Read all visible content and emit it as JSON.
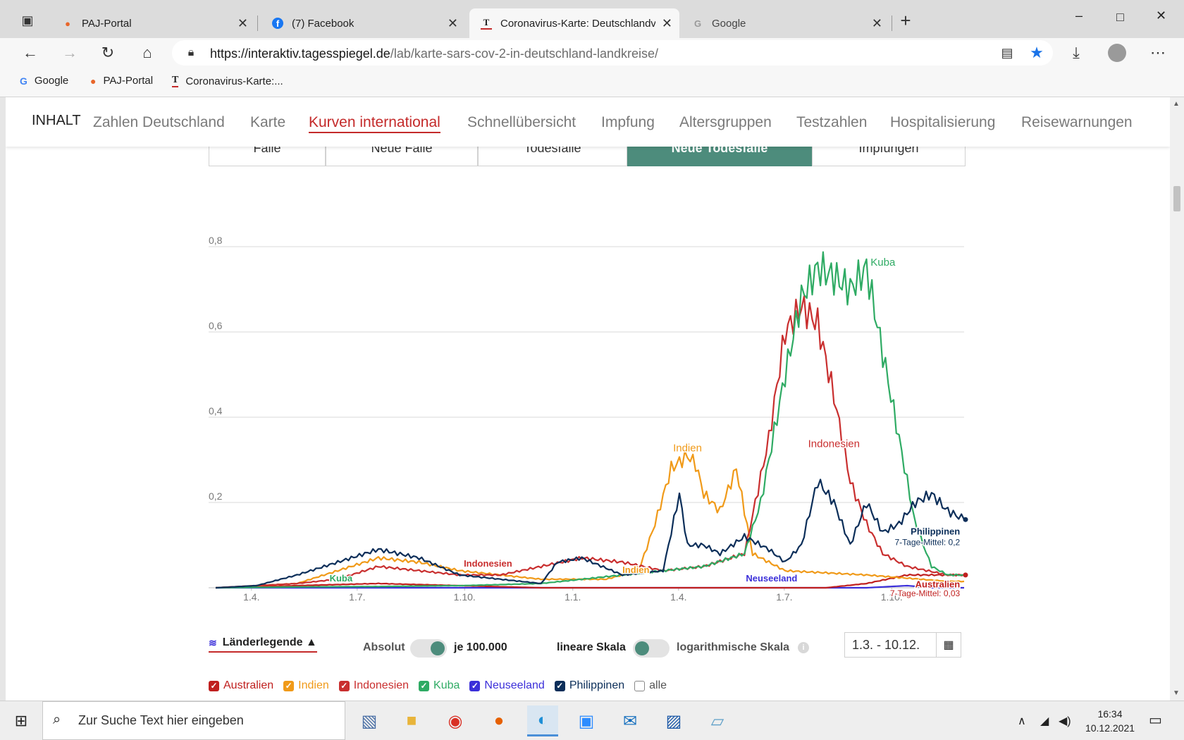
{
  "browser": {
    "tabs": [
      {
        "label": "PAJ-Portal",
        "icon": "map-pin-icon"
      },
      {
        "label": "(7) Facebook",
        "icon": "facebook-icon"
      },
      {
        "label": "Coronavirus-Karte: Deutschlandv",
        "icon": "tagesspiegel-icon"
      },
      {
        "label": "Google",
        "icon": "google-icon"
      }
    ],
    "url_host": "https://interaktiv.tagesspiegel.de",
    "url_path": "/lab/karte-sars-cov-2-in-deutschland-landkreise/",
    "bookmarks": [
      {
        "label": "Google",
        "icon": "google-icon"
      },
      {
        "label": "PAJ-Portal",
        "icon": "map-pin-icon"
      },
      {
        "label": "Coronavirus-Karte:...",
        "icon": "tagesspiegel-icon"
      }
    ]
  },
  "nav": {
    "inhalt": "INHALT",
    "items": [
      "Zahlen Deutschland",
      "Karte",
      "Kurven international",
      "Schnellübersicht",
      "Impfung",
      "Altersgruppen",
      "Testzahlen",
      "Hospitalisierung",
      "Reisewarnungen"
    ],
    "active": "Kurven international"
  },
  "segments": {
    "items": [
      "Fälle",
      "Neue Fälle",
      "Todesfälle",
      "Neue Todesfälle",
      "Impfungen"
    ],
    "active": "Neue Todesfälle"
  },
  "chart_data": {
    "type": "line",
    "ylim": [
      0,
      0.8
    ],
    "yticks": [
      "0,8",
      "0,6",
      "0,4",
      "0,2"
    ],
    "xticks": [
      "1.4.",
      "1.7.",
      "1.10.",
      "1.1.",
      "1.4.",
      "1.7.",
      "1.10."
    ],
    "x_unit": "weeks since 1.3.2020",
    "series": [
      {
        "name": "Australien",
        "color": "#c0201f",
        "x": [
          0,
          10,
          20,
          30,
          40,
          50,
          60,
          65,
          70,
          75,
          80,
          85,
          90,
          92
        ],
        "values": [
          0,
          0.005,
          0.01,
          0.005,
          0,
          0,
          0,
          0,
          0,
          0,
          0.01,
          0.03,
          0.03,
          0.03
        ]
      },
      {
        "name": "Indien",
        "color": "#f09a19",
        "x": [
          0,
          10,
          15,
          20,
          25,
          30,
          35,
          40,
          48,
          52,
          54,
          56,
          58,
          59,
          60,
          62,
          64,
          66,
          70,
          80,
          90,
          92
        ],
        "values": [
          0,
          0.01,
          0.04,
          0.07,
          0.06,
          0.04,
          0.03,
          0.02,
          0.02,
          0.04,
          0.15,
          0.28,
          0.31,
          0.29,
          0.22,
          0.18,
          0.28,
          0.08,
          0.04,
          0.03,
          0.015,
          0.015
        ]
      },
      {
        "name": "Indonesien",
        "color": "#c92f2f",
        "x": [
          0,
          10,
          15,
          20,
          25,
          30,
          35,
          40,
          45,
          50,
          55,
          60,
          65,
          68,
          70,
          72,
          74,
          76,
          78,
          80,
          82,
          85,
          90,
          92
        ],
        "values": [
          0,
          0.01,
          0.02,
          0.05,
          0.04,
          0.03,
          0.03,
          0.05,
          0.07,
          0.06,
          0.04,
          0.05,
          0.08,
          0.35,
          0.6,
          0.66,
          0.62,
          0.45,
          0.25,
          0.15,
          0.08,
          0.05,
          0.03,
          0.03
        ]
      },
      {
        "name": "Kuba",
        "color": "#2fab64",
        "x": [
          0,
          10,
          20,
          30,
          40,
          45,
          50,
          55,
          60,
          65,
          67,
          70,
          72,
          74,
          76,
          78,
          80,
          82,
          84,
          86,
          88,
          90,
          92
        ],
        "values": [
          0,
          0.002,
          0.003,
          0.005,
          0.01,
          0.02,
          0.03,
          0.04,
          0.05,
          0.08,
          0.2,
          0.5,
          0.68,
          0.75,
          0.73,
          0.7,
          0.75,
          0.55,
          0.35,
          0.15,
          0.05,
          0.03,
          0.03
        ]
      },
      {
        "name": "Neuseeland",
        "color": "#3b2fd9",
        "x": [
          0,
          30,
          60,
          80,
          85,
          88,
          92
        ],
        "values": [
          0,
          0,
          0,
          0,
          0.005,
          0,
          0
        ]
      },
      {
        "name": "Philippinen",
        "color": "#0b2e59",
        "x": [
          0,
          5,
          10,
          15,
          20,
          25,
          30,
          35,
          40,
          42,
          45,
          50,
          55,
          57,
          58,
          60,
          62,
          65,
          68,
          70,
          72,
          74,
          76,
          78,
          80,
          82,
          84,
          86,
          88,
          90,
          92
        ],
        "values": [
          0,
          0.005,
          0.03,
          0.06,
          0.09,
          0.07,
          0.03,
          0.02,
          0.01,
          0.06,
          0.07,
          0.03,
          0.04,
          0.22,
          0.1,
          0.1,
          0.08,
          0.12,
          0.09,
          0.06,
          0.1,
          0.25,
          0.2,
          0.1,
          0.2,
          0.13,
          0.15,
          0.2,
          0.22,
          0.18,
          0.16
        ]
      }
    ],
    "labels": {
      "kuba_peak": "Kuba",
      "indien_peak": "Indien",
      "indonesien_peak": "Indonesien",
      "indonesien_early": "Indonesien",
      "kuba_early": "Kuba",
      "indien_early": "Indien",
      "neuseeland": "Neuseeland",
      "philippinen": "Philippinen",
      "philippinen_avg": "7-Tage-Mittel: 0,2",
      "australien": "Australien",
      "australien_avg": "7-Tage-Mittel: 0,03"
    }
  },
  "controls": {
    "legend_toggle": "Länderlegende ▲",
    "absolut": "Absolut",
    "je100000": "je 100.000",
    "lineare": "lineare Skala",
    "log": "logarithmische Skala",
    "info_icon": "info-icon",
    "date_range": "1.3. - 10.12.",
    "checkboxes": [
      {
        "label": "Australien",
        "color": "#c0201f",
        "checked": true
      },
      {
        "label": "Indien",
        "color": "#f09a19",
        "checked": true
      },
      {
        "label": "Indonesien",
        "color": "#c92f2f",
        "checked": true
      },
      {
        "label": "Kuba",
        "color": "#2fab64",
        "checked": true
      },
      {
        "label": "Neuseeland",
        "color": "#3b2fd9",
        "checked": true
      },
      {
        "label": "Philippinen",
        "color": "#0b2e59",
        "checked": true
      },
      {
        "label": "alle",
        "color": "#888888",
        "checked": false
      }
    ]
  },
  "taskbar": {
    "search_placeholder": "Zur Suche Text hier eingeben",
    "time": "16:34",
    "date": "10.12.2021"
  }
}
